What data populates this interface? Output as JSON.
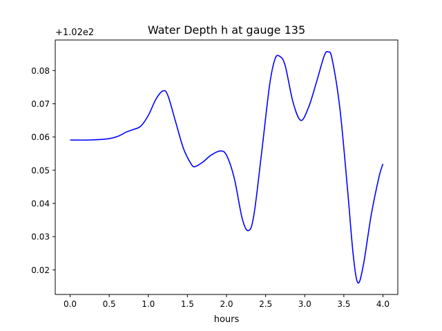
{
  "chart_data": {
    "type": "line",
    "title": "Water Depth h at gauge 135",
    "xlabel": "hours",
    "ylabel": "",
    "offset_label": "+1.02e2",
    "xlim": [
      -0.19,
      4.19
    ],
    "ylim": [
      0.0126,
      0.0892
    ],
    "xticks": [
      0.0,
      0.5,
      1.0,
      1.5,
      2.0,
      2.5,
      3.0,
      3.5,
      4.0
    ],
    "xtick_labels": [
      "0.0",
      "0.5",
      "1.0",
      "1.5",
      "2.0",
      "2.5",
      "3.0",
      "3.5",
      "4.0"
    ],
    "yticks": [
      0.02,
      0.03,
      0.04,
      0.05,
      0.06,
      0.07,
      0.08
    ],
    "ytick_labels": [
      "0.02",
      "0.03",
      "0.04",
      "0.05",
      "0.06",
      "0.07",
      "0.08"
    ],
    "grid": false,
    "series": [
      {
        "color": "#0000ff",
        "x": [
          0.0,
          0.25,
          0.5,
          0.62,
          0.72,
          0.8,
          0.9,
          1.0,
          1.1,
          1.19,
          1.25,
          1.35,
          1.45,
          1.55,
          1.6,
          1.7,
          1.8,
          1.92,
          2.0,
          2.1,
          2.2,
          2.28,
          2.35,
          2.45,
          2.55,
          2.62,
          2.68,
          2.75,
          2.85,
          2.95,
          3.05,
          3.15,
          3.25,
          3.3,
          3.35,
          3.45,
          3.55,
          3.62,
          3.68,
          3.75,
          3.85,
          3.95,
          4.0
        ],
        "y": [
          0.0591,
          0.0591,
          0.0595,
          0.0603,
          0.0615,
          0.0622,
          0.0632,
          0.0665,
          0.0715,
          0.0739,
          0.0725,
          0.0645,
          0.0565,
          0.0518,
          0.0511,
          0.0525,
          0.0545,
          0.0558,
          0.0545,
          0.0475,
          0.0355,
          0.0318,
          0.0365,
          0.0555,
          0.0755,
          0.0835,
          0.0843,
          0.0815,
          0.0705,
          0.065,
          0.069,
          0.0765,
          0.0845,
          0.0856,
          0.0835,
          0.0685,
          0.0435,
          0.0245,
          0.0161,
          0.0215,
          0.0365,
          0.048,
          0.0519
        ]
      }
    ]
  }
}
